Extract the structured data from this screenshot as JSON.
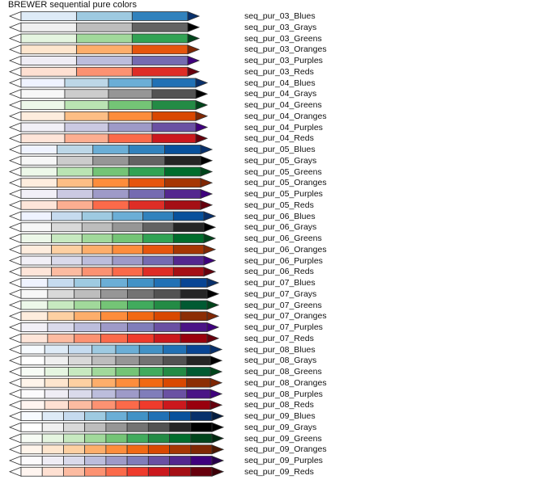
{
  "title": "BREWER sequential pure colors",
  "ramps": [
    {
      "label": "seq_pur_03_Blues",
      "colors": [
        "#deebf7",
        "#9ecae1",
        "#3182bd"
      ],
      "tip": "#08306b"
    },
    {
      "label": "seq_pur_03_Grays",
      "colors": [
        "#f0f0f0",
        "#bdbdbd",
        "#636363"
      ],
      "tip": "#000000"
    },
    {
      "label": "seq_pur_03_Greens",
      "colors": [
        "#e5f5e0",
        "#a1d99b",
        "#31a354"
      ],
      "tip": "#00441b"
    },
    {
      "label": "seq_pur_03_Oranges",
      "colors": [
        "#fee6ce",
        "#fdae6b",
        "#e6550d"
      ],
      "tip": "#7f2704"
    },
    {
      "label": "seq_pur_03_Purples",
      "colors": [
        "#efedf5",
        "#bcbddc",
        "#756bb1"
      ],
      "tip": "#3f007d"
    },
    {
      "label": "seq_pur_03_Reds",
      "colors": [
        "#fee0d2",
        "#fc9272",
        "#de2d26"
      ],
      "tip": "#67000d"
    },
    {
      "label": "seq_pur_04_Blues",
      "colors": [
        "#eff3ff",
        "#bdd7e7",
        "#6baed6",
        "#2171b5"
      ],
      "tip": "#08306b"
    },
    {
      "label": "seq_pur_04_Grays",
      "colors": [
        "#f7f7f7",
        "#cccccc",
        "#969696",
        "#525252"
      ],
      "tip": "#000000"
    },
    {
      "label": "seq_pur_04_Greens",
      "colors": [
        "#edf8e9",
        "#bae4b3",
        "#74c476",
        "#238b45"
      ],
      "tip": "#00441b"
    },
    {
      "label": "seq_pur_04_Oranges",
      "colors": [
        "#feedde",
        "#fdbe85",
        "#fd8d3c",
        "#d94701"
      ],
      "tip": "#7f2704"
    },
    {
      "label": "seq_pur_04_Purples",
      "colors": [
        "#f2f0f7",
        "#cbc9e2",
        "#9e9ac8",
        "#6a51a3"
      ],
      "tip": "#3f007d"
    },
    {
      "label": "seq_pur_04_Reds",
      "colors": [
        "#fee5d9",
        "#fcae91",
        "#fb6a4a",
        "#cb181d"
      ],
      "tip": "#67000d"
    },
    {
      "label": "seq_pur_05_Blues",
      "colors": [
        "#eff3ff",
        "#bdd7e7",
        "#6baed6",
        "#3182bd",
        "#08519c"
      ],
      "tip": "#08306b"
    },
    {
      "label": "seq_pur_05_Grays",
      "colors": [
        "#f7f7f7",
        "#cccccc",
        "#969696",
        "#636363",
        "#252525"
      ],
      "tip": "#000000"
    },
    {
      "label": "seq_pur_05_Greens",
      "colors": [
        "#edf8e9",
        "#bae4b3",
        "#74c476",
        "#31a354",
        "#006d2c"
      ],
      "tip": "#00441b"
    },
    {
      "label": "seq_pur_05_Oranges",
      "colors": [
        "#feedde",
        "#fdbe85",
        "#fd8d3c",
        "#e6550d",
        "#a63603"
      ],
      "tip": "#7f2704"
    },
    {
      "label": "seq_pur_05_Purples",
      "colors": [
        "#f2f0f7",
        "#cbc9e2",
        "#9e9ac8",
        "#756bb1",
        "#54278f"
      ],
      "tip": "#3f007d"
    },
    {
      "label": "seq_pur_05_Reds",
      "colors": [
        "#fee5d9",
        "#fcae91",
        "#fb6a4a",
        "#de2d26",
        "#a50f15"
      ],
      "tip": "#67000d"
    },
    {
      "label": "seq_pur_06_Blues",
      "colors": [
        "#eff3ff",
        "#c6dbef",
        "#9ecae1",
        "#6baed6",
        "#3182bd",
        "#08519c"
      ],
      "tip": "#08306b"
    },
    {
      "label": "seq_pur_06_Grays",
      "colors": [
        "#f7f7f7",
        "#d9d9d9",
        "#bdbdbd",
        "#969696",
        "#636363",
        "#252525"
      ],
      "tip": "#000000"
    },
    {
      "label": "seq_pur_06_Greens",
      "colors": [
        "#edf8e9",
        "#c7e9c0",
        "#a1d99b",
        "#74c476",
        "#31a354",
        "#006d2c"
      ],
      "tip": "#00441b"
    },
    {
      "label": "seq_pur_06_Oranges",
      "colors": [
        "#feedde",
        "#fdd0a2",
        "#fdae6b",
        "#fd8d3c",
        "#e6550d",
        "#a63603"
      ],
      "tip": "#7f2704"
    },
    {
      "label": "seq_pur_06_Purples",
      "colors": [
        "#f2f0f7",
        "#dadaeb",
        "#bcbddc",
        "#9e9ac8",
        "#756bb1",
        "#54278f"
      ],
      "tip": "#3f007d"
    },
    {
      "label": "seq_pur_06_Reds",
      "colors": [
        "#fee5d9",
        "#fcbba1",
        "#fc9272",
        "#fb6a4a",
        "#de2d26",
        "#a50f15"
      ],
      "tip": "#67000d"
    },
    {
      "label": "seq_pur_07_Blues",
      "colors": [
        "#eff3ff",
        "#c6dbef",
        "#9ecae1",
        "#6baed6",
        "#4292c6",
        "#2171b5",
        "#084594"
      ],
      "tip": "#08306b"
    },
    {
      "label": "seq_pur_07_Grays",
      "colors": [
        "#f7f7f7",
        "#d9d9d9",
        "#bdbdbd",
        "#969696",
        "#737373",
        "#525252",
        "#252525"
      ],
      "tip": "#000000"
    },
    {
      "label": "seq_pur_07_Greens",
      "colors": [
        "#edf8e9",
        "#c7e9c0",
        "#a1d99b",
        "#74c476",
        "#41ab5d",
        "#238b45",
        "#005a32"
      ],
      "tip": "#00441b"
    },
    {
      "label": "seq_pur_07_Oranges",
      "colors": [
        "#feedde",
        "#fdd0a2",
        "#fdae6b",
        "#fd8d3c",
        "#f16913",
        "#d94801",
        "#8c2d04"
      ],
      "tip": "#7f2704"
    },
    {
      "label": "seq_pur_07_Purples",
      "colors": [
        "#f2f0f7",
        "#dadaeb",
        "#bcbddc",
        "#9e9ac8",
        "#807dba",
        "#6a51a3",
        "#4a1486"
      ],
      "tip": "#3f007d"
    },
    {
      "label": "seq_pur_07_Reds",
      "colors": [
        "#fee5d9",
        "#fcbba1",
        "#fc9272",
        "#fb6a4a",
        "#ef3b2c",
        "#cb181d",
        "#99000d"
      ],
      "tip": "#67000d"
    },
    {
      "label": "seq_pur_08_Blues",
      "colors": [
        "#f7fbff",
        "#deebf7",
        "#c6dbef",
        "#9ecae1",
        "#6baed6",
        "#4292c6",
        "#2171b5",
        "#084594"
      ],
      "tip": "#08306b"
    },
    {
      "label": "seq_pur_08_Grays",
      "colors": [
        "#ffffff",
        "#f0f0f0",
        "#d9d9d9",
        "#bdbdbd",
        "#969696",
        "#737373",
        "#525252",
        "#252525"
      ],
      "tip": "#000000"
    },
    {
      "label": "seq_pur_08_Greens",
      "colors": [
        "#f7fcf5",
        "#e5f5e0",
        "#c7e9c0",
        "#a1d99b",
        "#74c476",
        "#41ab5d",
        "#238b45",
        "#005a32"
      ],
      "tip": "#00441b"
    },
    {
      "label": "seq_pur_08_Oranges",
      "colors": [
        "#fff5eb",
        "#fee6ce",
        "#fdd0a2",
        "#fdae6b",
        "#fd8d3c",
        "#f16913",
        "#d94801",
        "#8c2d04"
      ],
      "tip": "#7f2704"
    },
    {
      "label": "seq_pur_08_Purples",
      "colors": [
        "#fcfbfd",
        "#efedf5",
        "#dadaeb",
        "#bcbddc",
        "#9e9ac8",
        "#807dba",
        "#6a51a3",
        "#4a1486"
      ],
      "tip": "#3f007d"
    },
    {
      "label": "seq_pur_08_Reds",
      "colors": [
        "#fff5f0",
        "#fee0d2",
        "#fcbba1",
        "#fc9272",
        "#fb6a4a",
        "#ef3b2c",
        "#cb181d",
        "#99000d"
      ],
      "tip": "#67000d"
    },
    {
      "label": "seq_pur_09_Blues",
      "colors": [
        "#f7fbff",
        "#deebf7",
        "#c6dbef",
        "#9ecae1",
        "#6baed6",
        "#4292c6",
        "#2171b5",
        "#08519c",
        "#08306b"
      ],
      "tip": "#041c40"
    },
    {
      "label": "seq_pur_09_Grays",
      "colors": [
        "#ffffff",
        "#f0f0f0",
        "#d9d9d9",
        "#bdbdbd",
        "#969696",
        "#737373",
        "#525252",
        "#252525",
        "#000000"
      ],
      "tip": "#000000"
    },
    {
      "label": "seq_pur_09_Greens",
      "colors": [
        "#f7fcf5",
        "#e5f5e0",
        "#c7e9c0",
        "#a1d99b",
        "#74c476",
        "#41ab5d",
        "#238b45",
        "#006d2c",
        "#00441b"
      ],
      "tip": "#002810"
    },
    {
      "label": "seq_pur_09_Oranges",
      "colors": [
        "#fff5eb",
        "#fee6ce",
        "#fdd0a2",
        "#fdae6b",
        "#fd8d3c",
        "#f16913",
        "#d94801",
        "#a63603",
        "#7f2704"
      ],
      "tip": "#4a1702"
    },
    {
      "label": "seq_pur_09_Purples",
      "colors": [
        "#fcfbfd",
        "#efedf5",
        "#dadaeb",
        "#bcbddc",
        "#9e9ac8",
        "#807dba",
        "#6a51a3",
        "#54278f",
        "#3f007d"
      ],
      "tip": "#26004b"
    },
    {
      "label": "seq_pur_09_Reds",
      "colors": [
        "#fff5f0",
        "#fee0d2",
        "#fcbba1",
        "#fc9272",
        "#fb6a4a",
        "#ef3b2c",
        "#cb181d",
        "#a50f15",
        "#67000d"
      ],
      "tip": "#3d0008"
    }
  ]
}
